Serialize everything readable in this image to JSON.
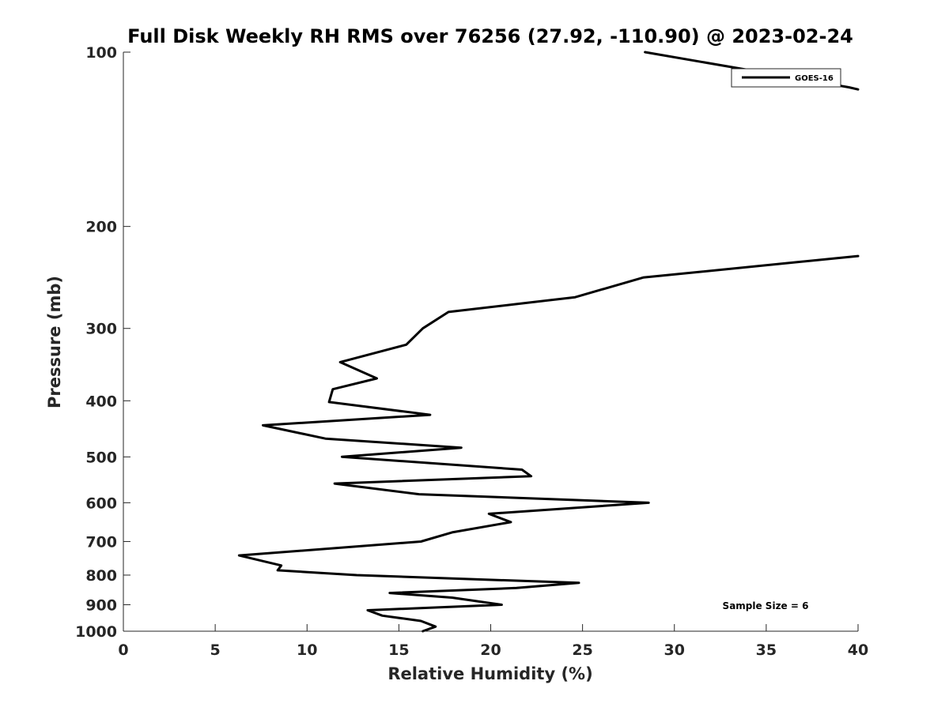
{
  "chart_data": {
    "type": "line",
    "title": "Full Disk Weekly RH RMS over 76256 (27.92, -110.90) @ 2023-02-24",
    "xlabel": "Relative Humidity (%)",
    "ylabel": "Pressure (mb)",
    "xlim": [
      0,
      40
    ],
    "ylim": [
      1000,
      100
    ],
    "y_scale": "log",
    "y_direction": "reversed",
    "grid": false,
    "legend_position": "top-right",
    "annotation": "Sample Size = 6",
    "x_ticks": [
      0,
      5,
      10,
      15,
      20,
      25,
      30,
      35,
      40
    ],
    "x_tick_labels": [
      "0",
      "5",
      "10",
      "15",
      "20",
      "25",
      "30",
      "35",
      "40"
    ],
    "y_ticks": [
      100,
      200,
      300,
      400,
      500,
      600,
      700,
      800,
      900,
      1000
    ],
    "y_tick_labels": [
      "100",
      "200",
      "300",
      "400",
      "500",
      "600",
      "700",
      "800",
      "900",
      "1000"
    ],
    "series": [
      {
        "name": "GOES-16",
        "color": "#000000",
        "segments": [
          [
            {
              "x": 28.4,
              "y": 100
            },
            {
              "x": 39.5,
              "y": 115
            },
            {
              "x": 40.0,
              "y": 116
            }
          ],
          [
            {
              "x": 40.0,
              "y": 225
            },
            {
              "x": 28.3,
              "y": 245
            },
            {
              "x": 24.6,
              "y": 265
            },
            {
              "x": 17.7,
              "y": 281
            },
            {
              "x": 16.3,
              "y": 300
            },
            {
              "x": 15.4,
              "y": 320
            },
            {
              "x": 11.8,
              "y": 343
            },
            {
              "x": 13.8,
              "y": 366
            },
            {
              "x": 11.4,
              "y": 382
            },
            {
              "x": 11.2,
              "y": 402
            },
            {
              "x": 16.7,
              "y": 423
            },
            {
              "x": 7.6,
              "y": 441
            },
            {
              "x": 11.0,
              "y": 465
            },
            {
              "x": 18.4,
              "y": 482
            },
            {
              "x": 11.9,
              "y": 500
            },
            {
              "x": 21.7,
              "y": 526
            },
            {
              "x": 22.2,
              "y": 540
            },
            {
              "x": 11.5,
              "y": 556
            },
            {
              "x": 16.1,
              "y": 580
            },
            {
              "x": 28.6,
              "y": 600
            },
            {
              "x": 19.9,
              "y": 627
            },
            {
              "x": 21.1,
              "y": 648
            },
            {
              "x": 17.9,
              "y": 675
            },
            {
              "x": 16.2,
              "y": 700
            },
            {
              "x": 6.3,
              "y": 740
            },
            {
              "x": 8.6,
              "y": 770
            },
            {
              "x": 8.4,
              "y": 785
            },
            {
              "x": 12.7,
              "y": 800
            },
            {
              "x": 24.8,
              "y": 825
            },
            {
              "x": 21.4,
              "y": 842
            },
            {
              "x": 14.5,
              "y": 859
            },
            {
              "x": 17.9,
              "y": 875
            },
            {
              "x": 20.6,
              "y": 900
            },
            {
              "x": 13.3,
              "y": 920
            },
            {
              "x": 14.1,
              "y": 940
            },
            {
              "x": 16.2,
              "y": 960
            },
            {
              "x": 17.0,
              "y": 982
            },
            {
              "x": 16.3,
              "y": 1000
            }
          ]
        ]
      }
    ]
  }
}
